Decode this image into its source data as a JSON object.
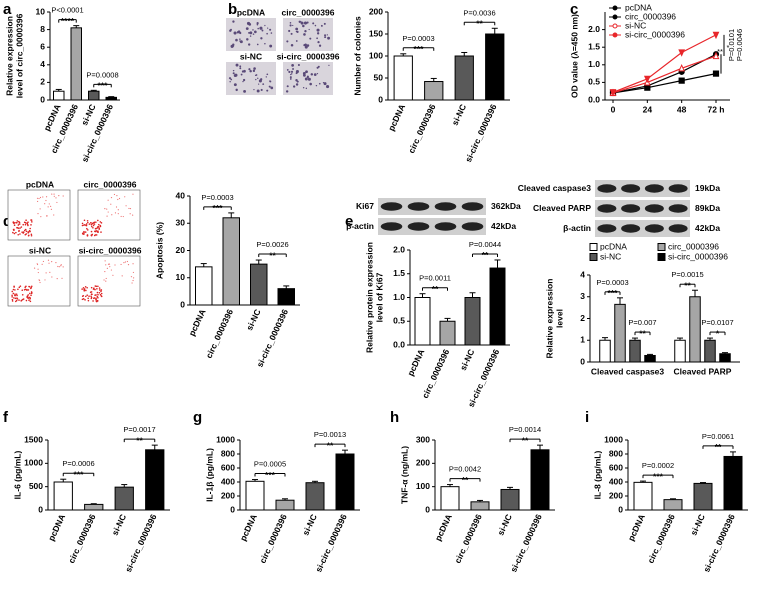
{
  "chart_data": [
    {
      "type": "bar",
      "panel": "a",
      "ylabel": [
        "Relative expression",
        "level of circ_0000396"
      ],
      "categories": [
        "pcDNA",
        "circ_0000396",
        "si-NC",
        "si-circ_0000396"
      ],
      "values": [
        1.0,
        8.2,
        1.0,
        0.3
      ],
      "errors": [
        0.2,
        0.25,
        0.1,
        0.08
      ],
      "colors": [
        "#ffffff",
        "#a6a6a6",
        "#595959",
        "#000000"
      ],
      "ylim": [
        0,
        10
      ],
      "yticks": [
        0,
        2,
        4,
        6,
        8,
        10
      ],
      "comparisons": [
        {
          "p": "P<0.0001",
          "stars": "****"
        },
        {
          "p": "P=0.0008",
          "stars": "***"
        }
      ]
    },
    {
      "type": "bar",
      "panel": "b",
      "ylabel": [
        "Number of colonies"
      ],
      "categories": [
        "pcDNA",
        "circ_0000396",
        "si-NC",
        "si-circ_0000396"
      ],
      "values": [
        100,
        42,
        100,
        150
      ],
      "errors": [
        5,
        7,
        8,
        13
      ],
      "colors": [
        "#ffffff",
        "#a6a6a6",
        "#595959",
        "#000000"
      ],
      "ylim": [
        0,
        200
      ],
      "yticks": [
        0,
        50,
        100,
        150,
        200
      ],
      "comparisons": [
        {
          "p": "P=0.0003",
          "stars": "***"
        },
        {
          "p": "P=0.0036",
          "stars": "**"
        }
      ]
    },
    {
      "type": "line",
      "panel": "c",
      "ylabel": [
        "OD value (λ=450 nm)"
      ],
      "categories": [
        "0",
        "24",
        "48",
        "72 h"
      ],
      "series": [
        {
          "name": "pcDNA",
          "color": "#000000",
          "marker": "circle",
          "filled": true,
          "values": [
            0.2,
            0.4,
            0.8,
            1.3
          ]
        },
        {
          "name": "circ_0000396",
          "color": "#000000",
          "marker": "square",
          "filled": true,
          "values": [
            0.2,
            0.35,
            0.55,
            0.75
          ]
        },
        {
          "name": "si-NC",
          "color": "#e8262b",
          "marker": "triangle",
          "filled": false,
          "values": [
            0.2,
            0.5,
            0.9,
            1.25
          ]
        },
        {
          "name": "si-circ_0000396",
          "color": "#e8262b",
          "marker": "triangle-down",
          "filled": true,
          "values": [
            0.22,
            0.6,
            1.35,
            1.85
          ]
        }
      ],
      "ylim": [
        0,
        2.5
      ],
      "yticks": [
        {
          "value": 0,
          "label": "0.0"
        },
        {
          "value": 0.5,
          "label": "0.5"
        },
        {
          "value": 1,
          "label": "1.0"
        },
        {
          "value": 1.5,
          "label": "1.5"
        },
        {
          "value": 2,
          "label": "2.0"
        }
      ],
      "annotations": [
        "P=0.0101",
        "P=0.0046",
        "**",
        "*"
      ]
    },
    {
      "type": "bar",
      "panel": "d",
      "ylabel": [
        "Apoptosis (%)"
      ],
      "categories": [
        "pcDNA",
        "circ_0000396",
        "si-NC",
        "si-circ_0000396"
      ],
      "values": [
        14,
        32,
        15,
        6
      ],
      "errors": [
        1.2,
        1.8,
        1.5,
        1.0
      ],
      "colors": [
        "#ffffff",
        "#a6a6a6",
        "#595959",
        "#000000"
      ],
      "ylim": [
        0,
        40
      ],
      "yticks": [
        0,
        10,
        20,
        30,
        40
      ],
      "comparisons": [
        {
          "p": "P=0.0003",
          "stars": "***"
        },
        {
          "p": "P=0.0026",
          "stars": "**"
        }
      ]
    },
    {
      "type": "bar",
      "panel": "e",
      "ylabel": [
        "Relative protein expression",
        "level of Ki67"
      ],
      "categories": [
        "pcDNA",
        "circ_0000396",
        "si-NC",
        "si-circ_0000396"
      ],
      "values": [
        1.0,
        0.5,
        1.0,
        1.62
      ],
      "errors": [
        0.08,
        0.06,
        0.1,
        0.17
      ],
      "colors": [
        "#ffffff",
        "#a6a6a6",
        "#595959",
        "#000000"
      ],
      "ylim": [
        0,
        2
      ],
      "yticks": [
        {
          "value": 0,
          "label": "0.0"
        },
        {
          "value": 0.5,
          "label": "0.5"
        },
        {
          "value": 1,
          "label": "1.0"
        },
        {
          "value": 1.5,
          "label": "1.5"
        },
        {
          "value": 2,
          "label": "2.0"
        }
      ],
      "comparisons": [
        {
          "p": "P=0.0011",
          "stars": "**"
        },
        {
          "p": "P=0.0044",
          "stars": "**"
        }
      ]
    },
    {
      "type": "grouped_bar",
      "ylabel": [
        "Relative expression",
        "level"
      ],
      "categories": [
        "Cleaved caspase3",
        "Cleaved PARP"
      ],
      "series": [
        {
          "name": "pcDNA",
          "color": "#ffffff",
          "values": [
            1.0,
            1.0
          ],
          "errors": [
            0.12,
            0.1
          ]
        },
        {
          "name": "circ_0000396",
          "color": "#a6a6a6",
          "values": [
            2.65,
            3.0
          ],
          "errors": [
            0.3,
            0.3
          ]
        },
        {
          "name": "si-NC",
          "color": "#595959",
          "values": [
            1.0,
            1.0
          ],
          "errors": [
            0.1,
            0.1
          ]
        },
        {
          "name": "si-circ_0000396",
          "color": "#000000",
          "values": [
            0.3,
            0.38
          ],
          "errors": [
            0.05,
            0.05
          ]
        }
      ],
      "ylim": [
        0,
        4
      ],
      "yticks": [
        0,
        1,
        2,
        3,
        4
      ],
      "comparisons": [
        {
          "p": "P=0.0003",
          "stars": "***"
        },
        {
          "p": "P=0.007",
          "stars": "**"
        },
        {
          "p": "P=0.0015",
          "stars": "**"
        },
        {
          "p": "P=0.0107",
          "stars": "*"
        }
      ]
    },
    {
      "type": "bar",
      "panel": "f",
      "ylabel": [
        "IL-6 (pg/mL)"
      ],
      "categories": [
        "pcDNA",
        "circ_0000396",
        "si-NC",
        "si-circ_0000396"
      ],
      "values": [
        600,
        120,
        490,
        1290
      ],
      "errors": [
        60,
        15,
        55,
        100
      ],
      "colors": [
        "#ffffff",
        "#a6a6a6",
        "#595959",
        "#000000"
      ],
      "ylim": [
        0,
        1500
      ],
      "yticks": [
        0,
        500,
        1000,
        1500
      ],
      "comparisons": [
        {
          "p": "P=0.0006",
          "stars": "***"
        },
        {
          "p": "P=0.0017",
          "stars": "**"
        }
      ]
    },
    {
      "type": "bar",
      "panel": "g",
      "ylabel": [
        "IL-1β (pg/mL)"
      ],
      "categories": [
        "pcDNA",
        "circ_0000396",
        "si-NC",
        "si-circ_0000396"
      ],
      "values": [
        410,
        140,
        390,
        800
      ],
      "errors": [
        25,
        20,
        20,
        55
      ],
      "colors": [
        "#ffffff",
        "#a6a6a6",
        "#595959",
        "#000000"
      ],
      "ylim": [
        0,
        1000
      ],
      "yticks": [
        0,
        200,
        400,
        600,
        800,
        1000
      ],
      "comparisons": [
        {
          "p": "P=0.0005",
          "stars": "***"
        },
        {
          "p": "P=0.0013",
          "stars": "**"
        }
      ]
    },
    {
      "type": "bar",
      "panel": "h",
      "ylabel": [
        "TNF-α (ng/mL)"
      ],
      "categories": [
        "pcDNA",
        "circ_0000396",
        "si-NC",
        "si-circ_0000396"
      ],
      "values": [
        100,
        35,
        88,
        258
      ],
      "errors": [
        9,
        6,
        9,
        20
      ],
      "colors": [
        "#ffffff",
        "#a6a6a6",
        "#595959",
        "#000000"
      ],
      "ylim": [
        0,
        300
      ],
      "yticks": [
        0,
        100,
        200,
        300
      ],
      "comparisons": [
        {
          "p": "P=0.0042",
          "stars": "**"
        },
        {
          "p": "P=0.0014",
          "stars": "**"
        }
      ]
    },
    {
      "type": "bar",
      "panel": "i",
      "ylabel": [
        "IL-8 (pg/mL)"
      ],
      "categories": [
        "pcDNA",
        "circ_0000396",
        "si-NC",
        "si-circ_0000396"
      ],
      "values": [
        395,
        148,
        380,
        765
      ],
      "errors": [
        18,
        12,
        12,
        65
      ],
      "colors": [
        "#ffffff",
        "#a6a6a6",
        "#595959",
        "#000000"
      ],
      "ylim": [
        0,
        1000
      ],
      "yticks": [
        0,
        200,
        400,
        600,
        800,
        1000
      ],
      "comparisons": [
        {
          "p": "P=0.0002",
          "stars": "***"
        },
        {
          "p": "P=0.0061",
          "stars": "**"
        }
      ]
    }
  ],
  "images": {
    "colony_plates": {
      "labels": [
        "pcDNA",
        "circ_0000396",
        "si-NC",
        "si-circ_0000396"
      ]
    },
    "flow_plots": {
      "labels": [
        "pcDNA",
        "circ_0000396",
        "si-NC",
        "si-circ_0000396"
      ]
    },
    "ki67_blot": {
      "bands": [
        "Ki67",
        "β-actin"
      ],
      "sizes": [
        "362kDa",
        "42kDa"
      ]
    },
    "apoptosis_blot": {
      "bands": [
        "Cleaved caspase3",
        "Cleaved PARP",
        "β-actin"
      ],
      "sizes": [
        "19kDa",
        "89kDa",
        "42kDa"
      ]
    }
  }
}
